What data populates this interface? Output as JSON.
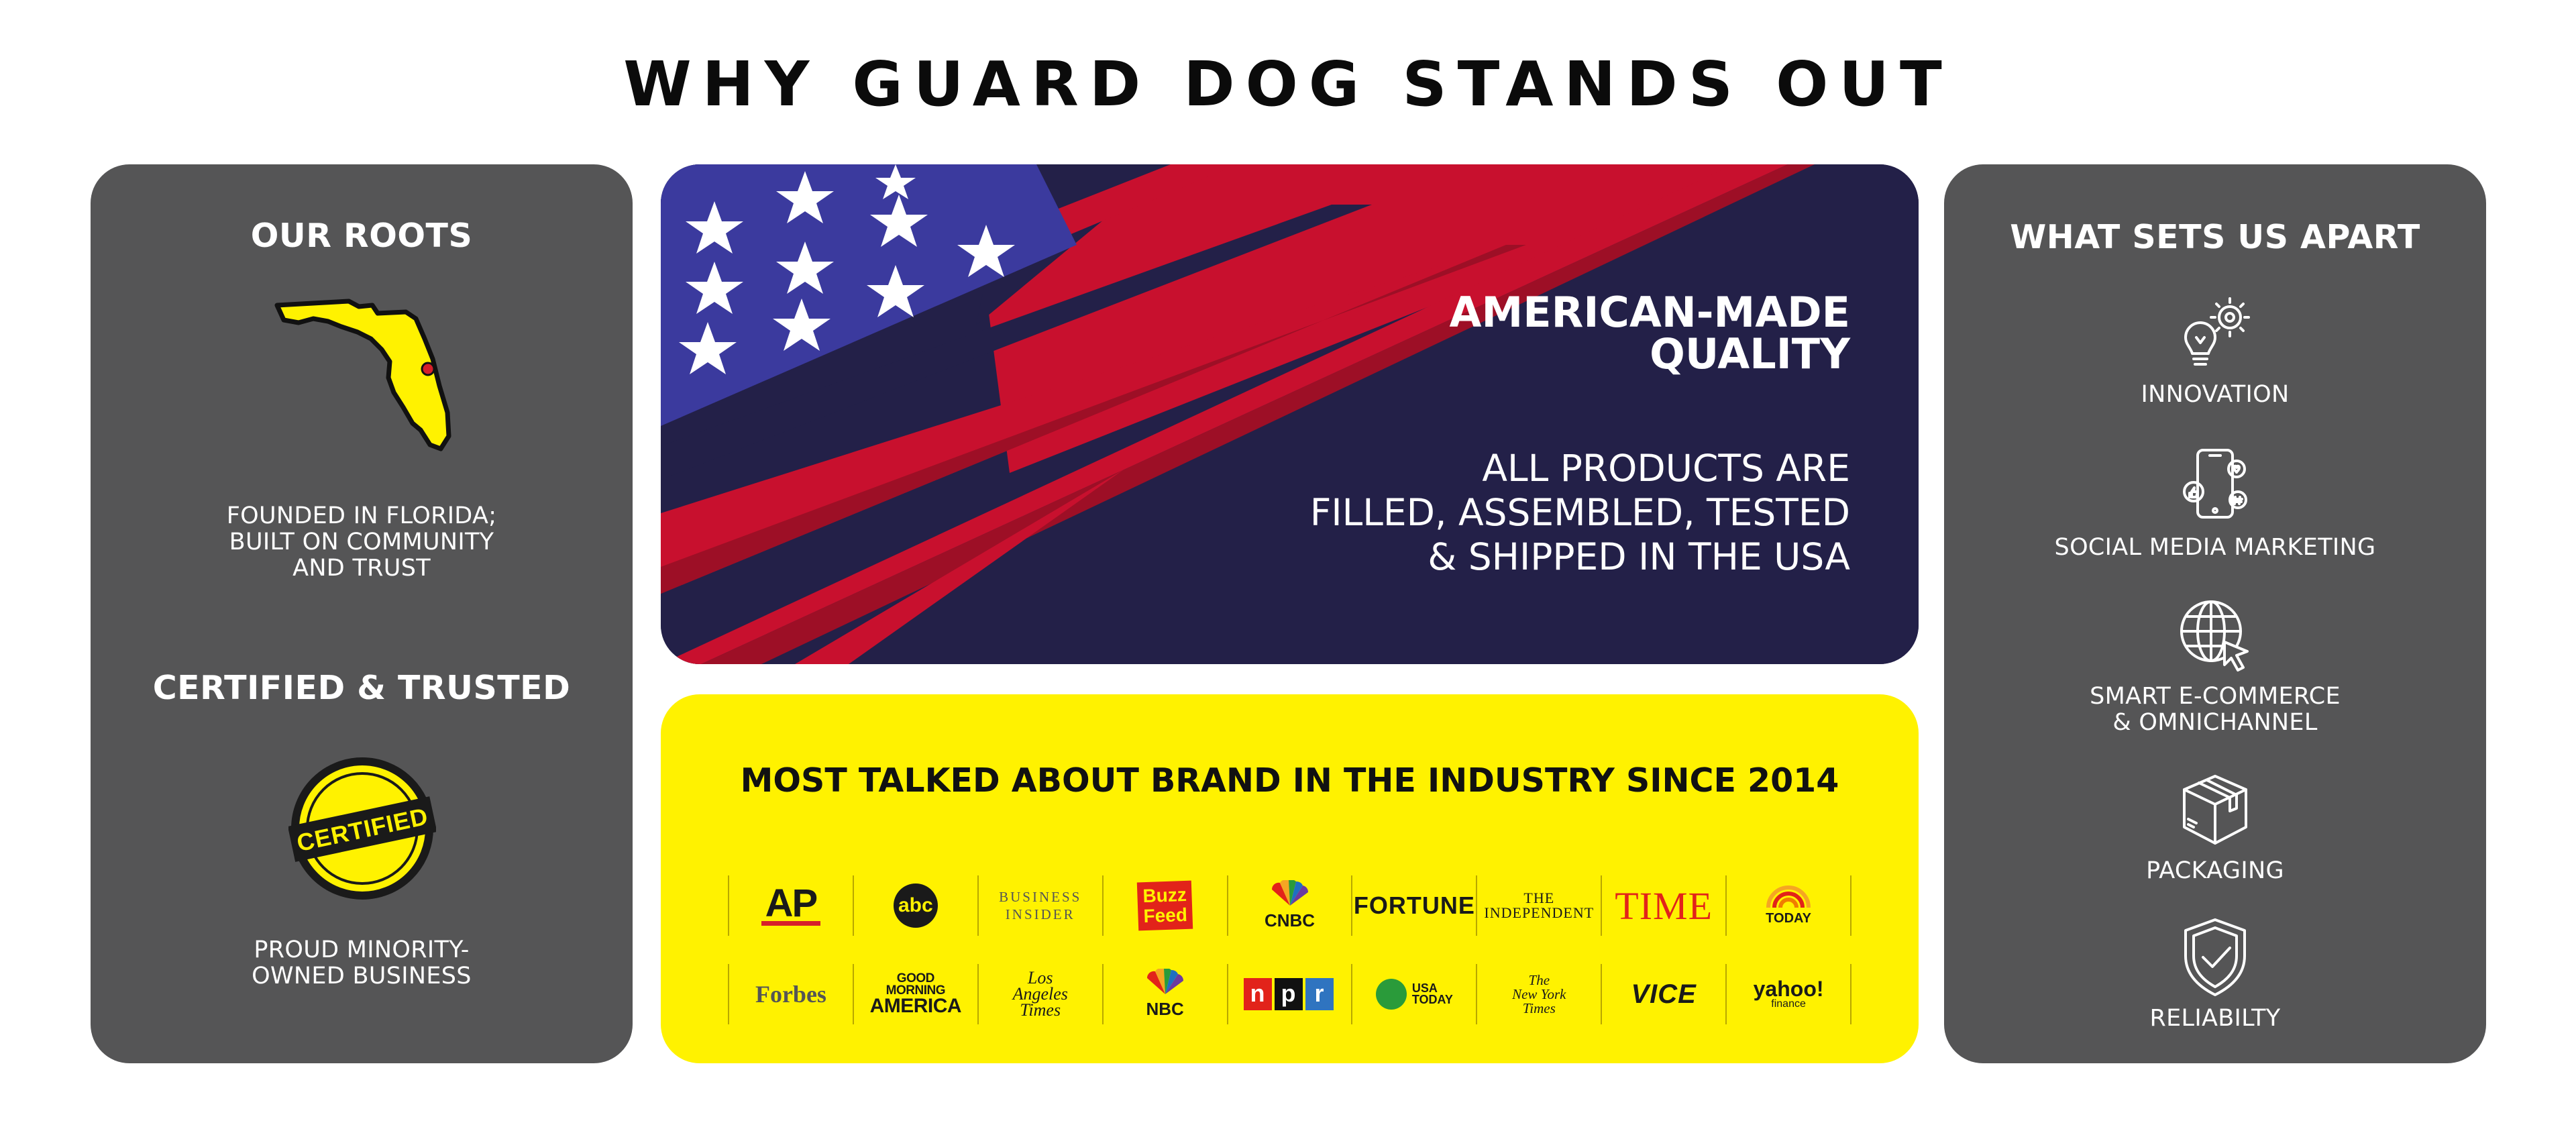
{
  "page": {
    "title": "WHY GUARD DOG STANDS OUT"
  },
  "left_panel": {
    "roots_heading": "OUR ROOTS",
    "roots_text": "FOUNDED IN FLORIDA;\nBUILT ON COMMUNITY\nAND TRUST",
    "certified_heading": "CERTIFIED & TRUSTED",
    "seal_text": "CERTIFIED",
    "certified_text": "PROUD MINORITY-\nOWNED BUSINESS"
  },
  "flag_panel": {
    "heading": "AMERICAN-MADE\nQUALITY",
    "body": "ALL PRODUCTS ARE\nFILLED, ASSEMBLED, TESTED\n& SHIPPED IN THE USA"
  },
  "press_panel": {
    "heading": "MOST TALKED ABOUT BRAND IN THE INDUSTRY SINCE 2014",
    "logos_row1": {
      "ap": "AP",
      "abc": "abc",
      "business_insider": "BUSINESS\nINSIDER",
      "buzzfeed": "Buzz\nFeed",
      "cnbc": "CNBC",
      "fortune": "FORTUNE",
      "independent": "THE\nINDEPENDENT",
      "time": "TIME",
      "today": "TODAY"
    },
    "logos_row2": {
      "forbes": "Forbes",
      "gma_small": "GOOD\nMORNING",
      "gma_big": "AMERICA",
      "latimes": "Los\nAngeles\nTimes",
      "nbc": "NBC",
      "npr_n": "n",
      "npr_p": "p",
      "npr_r": "r",
      "usatoday": "USA\nTODAY",
      "nyt": "The\nNew York\nTimes",
      "vice": "VICE",
      "yahoo": "yahoo!",
      "yahoo_sub": "finance"
    }
  },
  "right_panel": {
    "heading": "WHAT SETS US APART",
    "features": [
      {
        "label": "INNOVATION",
        "icon": "innovation-icon"
      },
      {
        "label": "SOCIAL MEDIA MARKETING",
        "icon": "social-media-icon"
      },
      {
        "label": "SMART E-COMMERCE\n& OMNICHANNEL",
        "icon": "globe-cursor-icon"
      },
      {
        "label": "PACKAGING",
        "icon": "package-box-icon"
      },
      {
        "label": "RELIABILTY",
        "icon": "shield-check-icon"
      }
    ]
  },
  "colors": {
    "panel_grey": "#555556",
    "navy": "#232048",
    "flag_red": "#c8102e",
    "flag_blue": "#3b3a9e",
    "press_yellow": "#fff200",
    "florida_yellow": "#fff200"
  }
}
